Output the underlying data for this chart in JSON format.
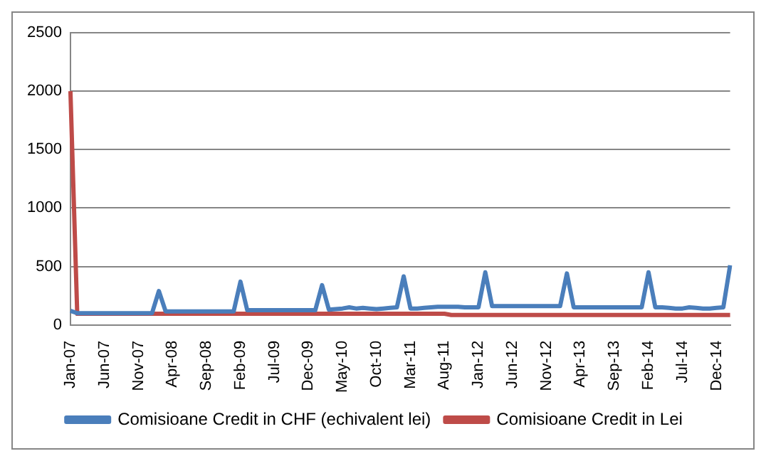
{
  "chart_data": {
    "type": "line",
    "categories": [
      "Jan-07",
      null,
      null,
      null,
      null,
      "Jun-07",
      null,
      null,
      null,
      null,
      "Nov-07",
      null,
      null,
      null,
      null,
      "Apr-08",
      null,
      null,
      null,
      null,
      "Sep-08",
      null,
      null,
      null,
      null,
      "Feb-09",
      null,
      null,
      null,
      null,
      "Jul-09",
      null,
      null,
      null,
      null,
      "Dec-09",
      null,
      null,
      null,
      null,
      "May-10",
      null,
      null,
      null,
      null,
      "Oct-10",
      null,
      null,
      null,
      null,
      "Mar-11",
      null,
      null,
      null,
      null,
      "Aug-11",
      null,
      null,
      null,
      null,
      "Jan-12",
      null,
      null,
      null,
      null,
      "Jun-12",
      null,
      null,
      null,
      null,
      "Nov-12",
      null,
      null,
      null,
      null,
      "Apr-13",
      null,
      null,
      null,
      null,
      "Sep-13",
      null,
      null,
      null,
      null,
      "Feb-14",
      null,
      null,
      null,
      null,
      "Jul-14",
      null,
      null,
      null,
      null,
      "Dec-14",
      null,
      null
    ],
    "series": [
      {
        "name": "Comisioane Credit in CHF (echivalent lei)",
        "color": "#4a7ebb",
        "values": [
          120,
          100,
          100,
          100,
          100,
          100,
          100,
          100,
          100,
          100,
          100,
          100,
          100,
          290,
          115,
          115,
          115,
          115,
          115,
          115,
          115,
          115,
          115,
          115,
          115,
          370,
          125,
          125,
          125,
          125,
          125,
          125,
          125,
          125,
          125,
          125,
          125,
          340,
          130,
          135,
          140,
          150,
          140,
          145,
          140,
          135,
          140,
          145,
          150,
          415,
          140,
          140,
          145,
          150,
          155,
          155,
          155,
          155,
          150,
          150,
          150,
          450,
          160,
          160,
          160,
          160,
          160,
          160,
          160,
          160,
          160,
          160,
          160,
          440,
          150,
          150,
          150,
          150,
          150,
          150,
          150,
          150,
          150,
          150,
          150,
          450,
          150,
          150,
          145,
          140,
          140,
          150,
          145,
          140,
          140,
          145,
          150,
          510
        ]
      },
      {
        "name": "Comisioane Credit in Lei",
        "color": "#be4b48",
        "values": [
          2000,
          95,
          95,
          95,
          95,
          95,
          95,
          95,
          95,
          95,
          95,
          95,
          95,
          95,
          95,
          95,
          95,
          95,
          95,
          95,
          95,
          95,
          95,
          95,
          95,
          95,
          95,
          95,
          95,
          95,
          95,
          95,
          95,
          95,
          95,
          95,
          95,
          95,
          95,
          95,
          95,
          95,
          95,
          95,
          95,
          95,
          95,
          95,
          95,
          95,
          95,
          95,
          95,
          95,
          95,
          95,
          85,
          85,
          85,
          85,
          85,
          85,
          85,
          85,
          85,
          85,
          85,
          85,
          85,
          85,
          85,
          85,
          85,
          85,
          85,
          85,
          85,
          85,
          85,
          85,
          85,
          85,
          85,
          85,
          85,
          85,
          85,
          85,
          85,
          85,
          85,
          85,
          85,
          85,
          85,
          85,
          85,
          85
        ]
      }
    ],
    "ylim": [
      0,
      2500
    ],
    "yticks": [
      0,
      500,
      1000,
      1500,
      2000,
      2500
    ],
    "grid": "y",
    "legend": "bottom",
    "marker": "none",
    "line_style": "solid"
  }
}
